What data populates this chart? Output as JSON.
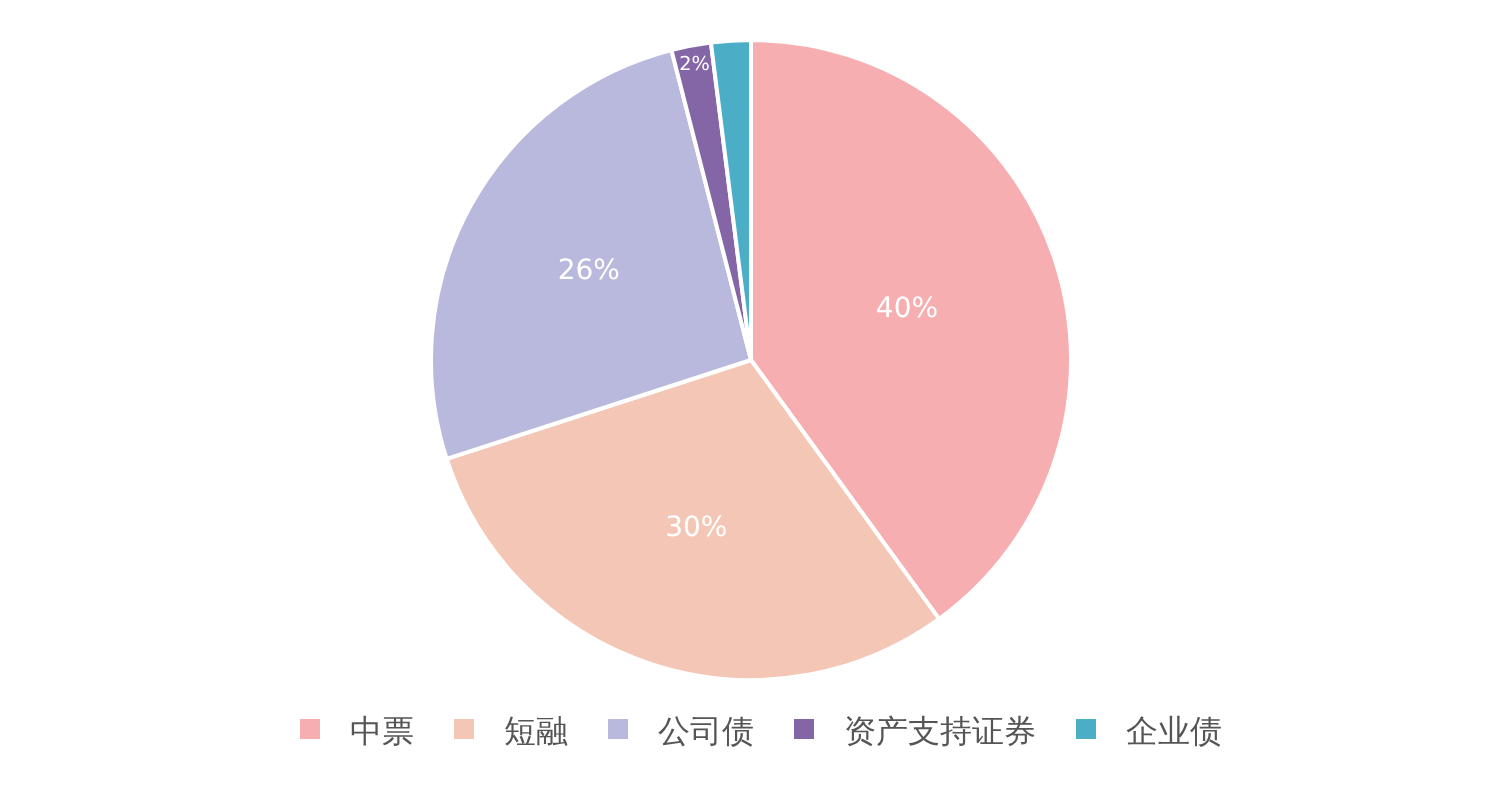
{
  "chart_data": {
    "type": "pie",
    "categories": [
      "中票",
      "短融",
      "公司债",
      "资产支持证券",
      "企业债"
    ],
    "values": [
      40,
      30,
      26,
      2,
      2
    ],
    "colors": [
      "#f7aeb0",
      "#f4c6b6",
      "#b9b9de",
      "#8466a6",
      "#4baec6"
    ],
    "value_labels": [
      "40%",
      "30%",
      "26%",
      "2%",
      null
    ],
    "legend": "bottom"
  }
}
